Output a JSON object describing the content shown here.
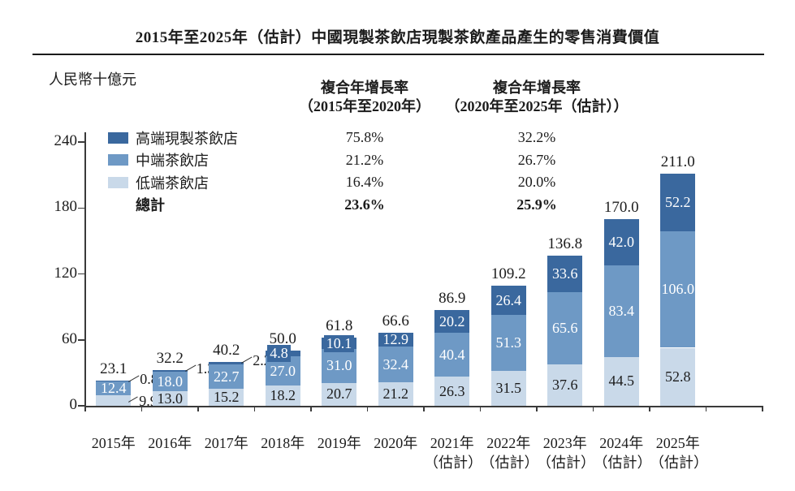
{
  "chart_data": {
    "type": "bar",
    "stacked": true,
    "title": "2015年至2025年（估計）中國現製茶飲店現製茶飲產品產生的零售消費價值",
    "unit_label": "人民幣十億元",
    "categories": [
      "2015年",
      "2016年",
      "2017年",
      "2018年",
      "2019年",
      "2020年",
      "2021年",
      "2022年",
      "2023年",
      "2024年",
      "2025年"
    ],
    "estimate_suffix": "（估計）",
    "estimate_start_index": 6,
    "ylim": [
      0,
      240
    ],
    "yticks": [
      0,
      60,
      120,
      180,
      240
    ],
    "series": [
      {
        "key": "high",
        "name": "高端現製茶飲店",
        "color": "#3A689E",
        "values": [
          0.8,
          1.3,
          2.2,
          4.8,
          10.1,
          12.9,
          20.2,
          26.4,
          33.6,
          42.0,
          52.2
        ]
      },
      {
        "key": "mid",
        "name": "中端茶飲店",
        "color": "#6E99C5",
        "values": [
          12.4,
          18.0,
          22.7,
          27.0,
          31.0,
          32.4,
          40.4,
          51.3,
          65.6,
          83.4,
          106.0
        ]
      },
      {
        "key": "low",
        "name": "低端茶飲店",
        "color": "#C9D9E9",
        "values": [
          9.9,
          13.0,
          15.2,
          18.2,
          20.7,
          21.2,
          26.3,
          31.5,
          37.6,
          44.5,
          52.8
        ]
      }
    ],
    "totals": [
      23.1,
      32.2,
      40.2,
      50.0,
      61.8,
      66.6,
      86.9,
      109.2,
      136.8,
      170.0,
      211.0
    ],
    "total_label": "總計",
    "label_callouts": [
      [
        0,
        "high"
      ],
      [
        0,
        "low"
      ],
      [
        1,
        "high"
      ],
      [
        2,
        "high"
      ]
    ],
    "cagr": {
      "col1": {
        "header_line1": "複合年增長率",
        "header_line2": "（2015年至2020年）",
        "values": [
          "75.8%",
          "21.2%",
          "16.4%",
          "23.6%"
        ]
      },
      "col2": {
        "header_line1": "複合年增長率",
        "header_line2": "（2020年至2025年（估計））",
        "values": [
          "32.2%",
          "26.7%",
          "20.0%",
          "25.9%"
        ]
      }
    },
    "text_color": "#1c1c1c",
    "axis_color": "#3a3a3a"
  }
}
